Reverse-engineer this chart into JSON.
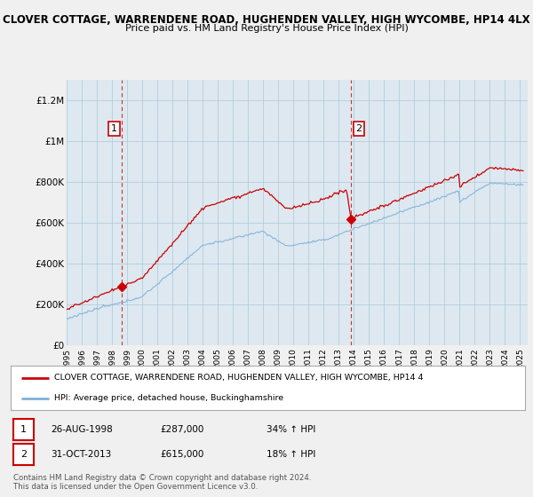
{
  "title": "CLOVER COTTAGE, WARRENDENE ROAD, HUGHENDEN VALLEY, HIGH WYCOMBE, HP14 4LX",
  "subtitle": "Price paid vs. HM Land Registry's House Price Index (HPI)",
  "ylim": [
    0,
    1300000
  ],
  "yticks": [
    0,
    200000,
    400000,
    600000,
    800000,
    1000000,
    1200000
  ],
  "ytick_labels": [
    "£0",
    "£200K",
    "£400K",
    "£600K",
    "£800K",
    "£1M",
    "£1.2M"
  ],
  "sale1_x": 1998.65,
  "sale1_y": 287000,
  "sale2_x": 2013.83,
  "sale2_y": 615000,
  "sale1_label": "26-AUG-1998",
  "sale1_price": "£287,000",
  "sale1_hpi": "34% ↑ HPI",
  "sale2_label": "31-OCT-2013",
  "sale2_price": "£615,000",
  "sale2_hpi": "18% ↑ HPI",
  "line_color_property": "#cc0000",
  "line_color_hpi": "#7fb0d8",
  "background_color": "#f0f0f0",
  "plot_bg_color": "#dde8f0",
  "legend_label_property": "CLOVER COTTAGE, WARRENDENE ROAD, HUGHENDEN VALLEY, HIGH WYCOMBE, HP14 4",
  "legend_label_hpi": "HPI: Average price, detached house, Buckinghamshire",
  "footer1": "Contains HM Land Registry data © Crown copyright and database right 2024.",
  "footer2": "This data is licensed under the Open Government Licence v3.0.",
  "xmin": 1995,
  "xmax": 2025.5,
  "xtick_years": [
    1995,
    1996,
    1997,
    1998,
    1999,
    2000,
    2001,
    2002,
    2003,
    2004,
    2005,
    2006,
    2007,
    2008,
    2009,
    2010,
    2011,
    2012,
    2013,
    2014,
    2015,
    2016,
    2017,
    2018,
    2019,
    2020,
    2021,
    2022,
    2023,
    2024,
    2025
  ]
}
